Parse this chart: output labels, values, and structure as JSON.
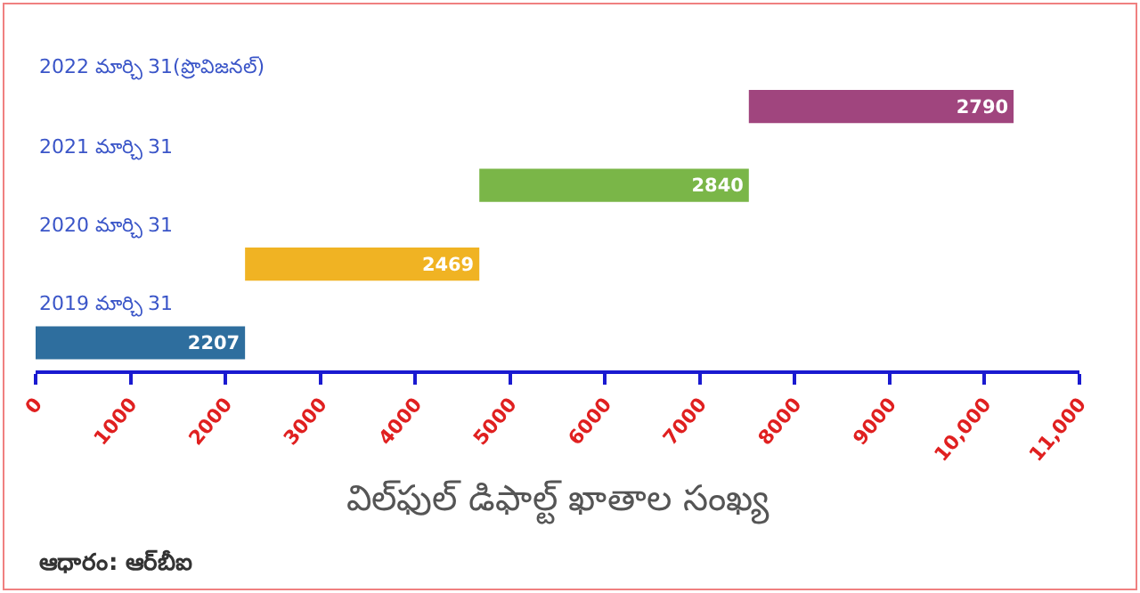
{
  "chart_data": {
    "type": "bar",
    "orientation": "horizontal",
    "categories": [
      "2022 మార్చి 31(ప్రొవిజనల్)",
      "2021 మార్చి 31",
      "2020 మార్చి 31",
      "2019 మార్చి 31"
    ],
    "values": [
      2790,
      2840,
      2469,
      2207
    ],
    "base": [
      7516,
      4676,
      2207,
      0
    ],
    "colors": [
      "#a0457e",
      "#7ab648",
      "#f0b323",
      "#2e6e9e"
    ],
    "data_labels": true,
    "xlabel": "విల్‌ఫుల్ డిఫాల్ట్ ఖాతాల సంఖ్య",
    "xlim": [
      0,
      11000
    ],
    "xticks": [
      0,
      1000,
      2000,
      3000,
      4000,
      5000,
      6000,
      7000,
      8000,
      9000,
      {
        "value": 10000,
        "label": "10,000"
      },
      {
        "value": 11000,
        "label": "11,000"
      }
    ],
    "annotations": [
      "ఆధారం: ఆర్‌బీఐ"
    ]
  }
}
